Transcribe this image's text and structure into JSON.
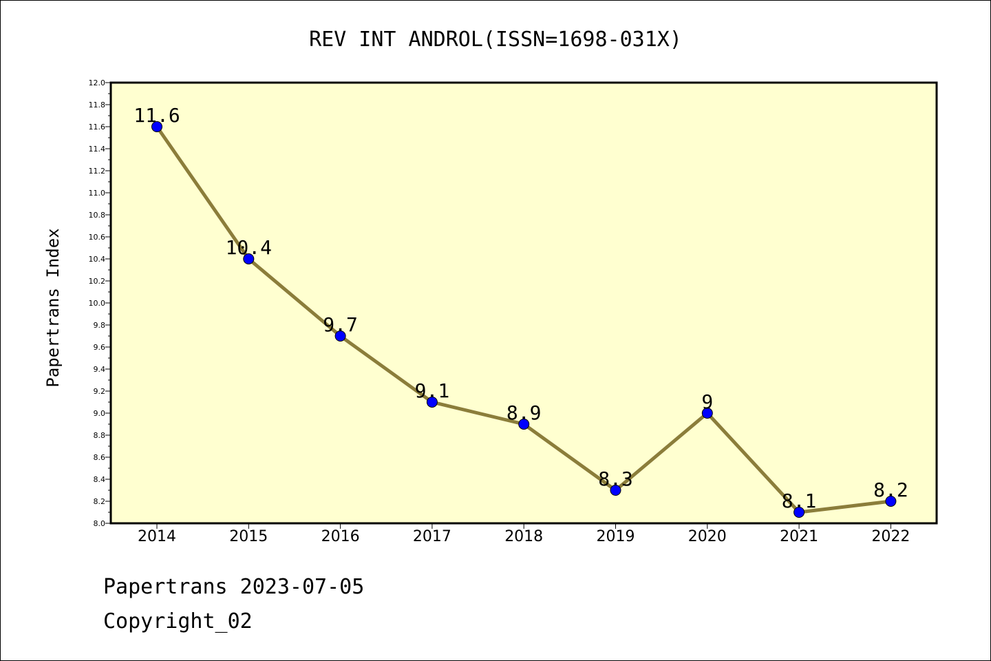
{
  "chart_data": {
    "type": "line",
    "title": "REV INT ANDROL(ISSN=1698-031X)",
    "xlabel": "",
    "ylabel": "Papertrans Index",
    "categories": [
      "2014",
      "2015",
      "2016",
      "2017",
      "2018",
      "2019",
      "2020",
      "2021",
      "2022"
    ],
    "series": [
      {
        "values": [
          11.6,
          10.4,
          9.7,
          9.1,
          8.9,
          8.3,
          9.0,
          8.1,
          8.2
        ],
        "point_labels": [
          "11.6",
          "10.4",
          "9.7",
          "9.1",
          "8.9",
          "8.3",
          "9",
          "8.1",
          "8.2"
        ]
      }
    ],
    "ylim": [
      8.0,
      12.0
    ],
    "yticks": [
      "8.0",
      "8.2",
      "8.4",
      "8.6",
      "8.8",
      "9.0",
      "9.2",
      "9.4",
      "9.6",
      "9.8",
      "10.0",
      "10.2",
      "10.4",
      "10.6",
      "10.8",
      "11.0",
      "11.2",
      "11.4",
      "11.6",
      "11.8",
      "12.0"
    ],
    "grid": false,
    "legend": "none",
    "colors": {
      "plot_background": "#ffffd0",
      "line": "#8b7d3a",
      "marker": "#0000ff",
      "marker_edge": "#000000",
      "axes": "#000000"
    }
  },
  "footer": {
    "line1": "Papertrans 2023-07-05",
    "line2": "Copyright_02"
  }
}
